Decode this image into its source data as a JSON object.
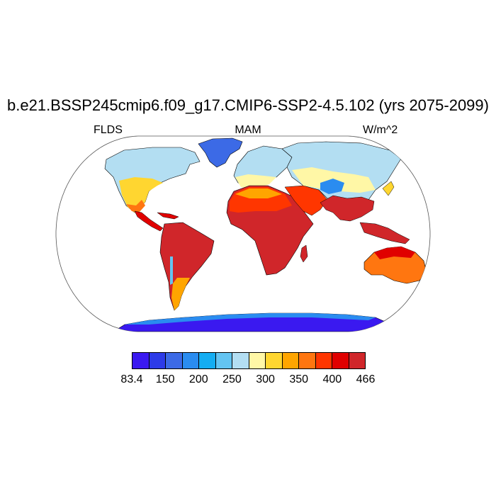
{
  "title": "b.e21.BSSP245cmip6.f09_g17.CMIP6-SSP2-4.5.102 (yrs 2075-2099)",
  "left_string": "FLDS",
  "center_string": "MAM",
  "right_string": "W/m^2",
  "map": {
    "projection": "robinson",
    "variable": "FLDS",
    "season": "MAM",
    "units": "W/m^2"
  },
  "colorbar": {
    "colors": [
      "#3a19f0",
      "#2d3be8",
      "#3c6ae6",
      "#2a8cf0",
      "#14adf2",
      "#63c4f2",
      "#b3def2",
      "#fff7a6",
      "#ffd630",
      "#ffa500",
      "#ff7610",
      "#ff3600",
      "#e00000",
      "#d0262a"
    ],
    "labels": [
      {
        "text": "83.4",
        "index": 0
      },
      {
        "text": "150",
        "index": 2
      },
      {
        "text": "200",
        "index": 4
      },
      {
        "text": "250",
        "index": 6
      },
      {
        "text": "300",
        "index": 8
      },
      {
        "text": "350",
        "index": 10
      },
      {
        "text": "400",
        "index": 12
      },
      {
        "text": "466",
        "index": 14
      }
    ]
  }
}
